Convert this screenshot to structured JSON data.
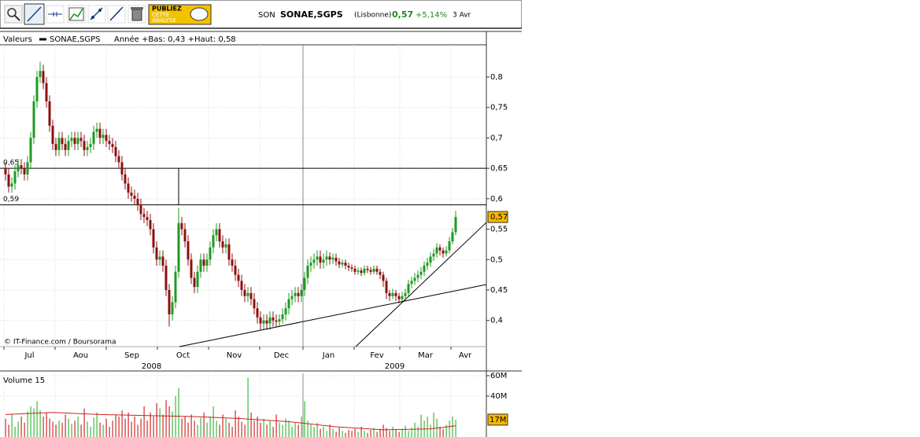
{
  "toolbar": {
    "ad": [
      "PUBLIEZ",
      "CETTE",
      "ANALYSE"
    ],
    "code": "SON",
    "name": "SONAE,SGPS",
    "market": "(Lisbonne)",
    "price": "0,57",
    "change": "+5,14%",
    "date": "3 Avr"
  },
  "legend": {
    "title": "Valeurs",
    "series": "SONAE,SGPS",
    "range": "Année +Bas: 0,43 +Haut: 0,58"
  },
  "chart_data": {
    "type": "candlestick",
    "watermark": "© IT-Finance.com / Boursorama",
    "grid": true,
    "colors": {
      "up": "#1f9a1f",
      "down": "#8b1010",
      "ma": "#cc2222"
    },
    "xlim": [
      -1.75,
      152.75
    ],
    "xticks": [
      {
        "value": -0.5,
        "label": "Jul"
      },
      {
        "value": 15.75,
        "label": "Aou"
      },
      {
        "value": 32,
        "label": "Sep"
      },
      {
        "value": 48.25,
        "label": "Oct"
      },
      {
        "value": 64.5,
        "label": "Nov"
      },
      {
        "value": 80.75,
        "label": "Dec"
      },
      {
        "value": 94.5,
        "label": "Jan"
      },
      {
        "value": 110.75,
        "label": "Fev"
      },
      {
        "value": 125.25,
        "label": "Mar"
      },
      {
        "value": 141.5,
        "label": "Avr"
      }
    ],
    "x_groups": [
      {
        "label": "2008",
        "range": [
          -1.75,
          94.5
        ]
      },
      {
        "label": "2009",
        "range": [
          94.5,
          152.75
        ]
      }
    ],
    "ylim": [
      0.357,
      0.853
    ],
    "yticks": [
      {
        "value": 0.4,
        "label": "0,4"
      },
      {
        "value": 0.45,
        "label": "0,45"
      },
      {
        "value": 0.5,
        "label": "0,5"
      },
      {
        "value": 0.55,
        "label": "0,55"
      },
      {
        "value": 0.6,
        "label": "0,6"
      },
      {
        "value": 0.65,
        "label": "0,65"
      },
      {
        "value": 0.7,
        "label": "0,7"
      },
      {
        "value": 0.75,
        "label": "0,75"
      },
      {
        "value": 0.8,
        "label": "0,8"
      }
    ],
    "hlines": [
      {
        "value": 0.65,
        "label": "0,65"
      },
      {
        "value": 0.59,
        "label": "0,59"
      }
    ],
    "vline": {
      "x": 55,
      "from": 0.59,
      "to": 0.65
    },
    "trendlines": [
      {
        "x": [
          55.25,
          152.75
        ],
        "y": [
          0.357,
          0.459
        ]
      },
      {
        "x": [
          111.25,
          152.75
        ],
        "y": [
          0.357,
          0.561
        ]
      }
    ],
    "last_value": {
      "value": 0.57,
      "label": "0,57"
    },
    "ohlc": [
      [
        0.65,
        0.66,
        0.63,
        0.64
      ],
      [
        0.64,
        0.65,
        0.61,
        0.62
      ],
      [
        0.62,
        0.635,
        0.61,
        0.625
      ],
      [
        0.625,
        0.655,
        0.615,
        0.645
      ],
      [
        0.645,
        0.665,
        0.635,
        0.655
      ],
      [
        0.655,
        0.665,
        0.64,
        0.65
      ],
      [
        0.65,
        0.66,
        0.63,
        0.64
      ],
      [
        0.64,
        0.67,
        0.63,
        0.66
      ],
      [
        0.66,
        0.71,
        0.65,
        0.7
      ],
      [
        0.7,
        0.77,
        0.69,
        0.76
      ],
      [
        0.76,
        0.81,
        0.75,
        0.8
      ],
      [
        0.8,
        0.825,
        0.79,
        0.81
      ],
      [
        0.81,
        0.82,
        0.78,
        0.79
      ],
      [
        0.79,
        0.8,
        0.75,
        0.76
      ],
      [
        0.76,
        0.77,
        0.71,
        0.72
      ],
      [
        0.72,
        0.73,
        0.68,
        0.69
      ],
      [
        0.69,
        0.7,
        0.67,
        0.68
      ],
      [
        0.68,
        0.71,
        0.67,
        0.7
      ],
      [
        0.7,
        0.71,
        0.68,
        0.69
      ],
      [
        0.69,
        0.7,
        0.67,
        0.68
      ],
      [
        0.68,
        0.705,
        0.67,
        0.695
      ],
      [
        0.695,
        0.71,
        0.685,
        0.7
      ],
      [
        0.7,
        0.71,
        0.68,
        0.69
      ],
      [
        0.69,
        0.71,
        0.68,
        0.7
      ],
      [
        0.7,
        0.71,
        0.685,
        0.695
      ],
      [
        0.695,
        0.705,
        0.67,
        0.68
      ],
      [
        0.68,
        0.695,
        0.67,
        0.685
      ],
      [
        0.685,
        0.7,
        0.675,
        0.69
      ],
      [
        0.69,
        0.72,
        0.68,
        0.71
      ],
      [
        0.71,
        0.725,
        0.7,
        0.715
      ],
      [
        0.715,
        0.725,
        0.69,
        0.7
      ],
      [
        0.7,
        0.715,
        0.69,
        0.705
      ],
      [
        0.705,
        0.715,
        0.685,
        0.695
      ],
      [
        0.695,
        0.705,
        0.68,
        0.69
      ],
      [
        0.69,
        0.7,
        0.675,
        0.685
      ],
      [
        0.685,
        0.695,
        0.66,
        0.67
      ],
      [
        0.67,
        0.68,
        0.65,
        0.66
      ],
      [
        0.66,
        0.67,
        0.63,
        0.64
      ],
      [
        0.64,
        0.65,
        0.615,
        0.625
      ],
      [
        0.625,
        0.635,
        0.6,
        0.61
      ],
      [
        0.61,
        0.62,
        0.595,
        0.605
      ],
      [
        0.605,
        0.615,
        0.59,
        0.6
      ],
      [
        0.6,
        0.61,
        0.58,
        0.59
      ],
      [
        0.59,
        0.6,
        0.565,
        0.575
      ],
      [
        0.575,
        0.585,
        0.56,
        0.57
      ],
      [
        0.57,
        0.58,
        0.555,
        0.565
      ],
      [
        0.565,
        0.575,
        0.54,
        0.55
      ],
      [
        0.55,
        0.56,
        0.51,
        0.52
      ],
      [
        0.52,
        0.53,
        0.49,
        0.5
      ],
      [
        0.5,
        0.515,
        0.49,
        0.505
      ],
      [
        0.505,
        0.515,
        0.48,
        0.49
      ],
      [
        0.49,
        0.5,
        0.44,
        0.45
      ],
      [
        0.45,
        0.46,
        0.39,
        0.41
      ],
      [
        0.41,
        0.44,
        0.4,
        0.43
      ],
      [
        0.43,
        0.49,
        0.42,
        0.48
      ],
      [
        0.48,
        0.585,
        0.47,
        0.56
      ],
      [
        0.56,
        0.57,
        0.54,
        0.55
      ],
      [
        0.55,
        0.56,
        0.52,
        0.53
      ],
      [
        0.53,
        0.54,
        0.49,
        0.5
      ],
      [
        0.5,
        0.51,
        0.46,
        0.47
      ],
      [
        0.47,
        0.48,
        0.445,
        0.455
      ],
      [
        0.455,
        0.49,
        0.445,
        0.48
      ],
      [
        0.48,
        0.51,
        0.47,
        0.5
      ],
      [
        0.5,
        0.51,
        0.48,
        0.49
      ],
      [
        0.49,
        0.51,
        0.48,
        0.5
      ],
      [
        0.5,
        0.53,
        0.49,
        0.52
      ],
      [
        0.52,
        0.55,
        0.51,
        0.54
      ],
      [
        0.54,
        0.56,
        0.53,
        0.55
      ],
      [
        0.55,
        0.56,
        0.52,
        0.53
      ],
      [
        0.53,
        0.54,
        0.51,
        0.52
      ],
      [
        0.52,
        0.535,
        0.51,
        0.525
      ],
      [
        0.525,
        0.535,
        0.49,
        0.5
      ],
      [
        0.5,
        0.51,
        0.48,
        0.49
      ],
      [
        0.49,
        0.5,
        0.465,
        0.475
      ],
      [
        0.475,
        0.485,
        0.455,
        0.465
      ],
      [
        0.465,
        0.475,
        0.44,
        0.45
      ],
      [
        0.45,
        0.46,
        0.43,
        0.44
      ],
      [
        0.44,
        0.455,
        0.43,
        0.445
      ],
      [
        0.445,
        0.455,
        0.425,
        0.435
      ],
      [
        0.435,
        0.445,
        0.41,
        0.42
      ],
      [
        0.42,
        0.43,
        0.395,
        0.405
      ],
      [
        0.405,
        0.415,
        0.385,
        0.395
      ],
      [
        0.395,
        0.41,
        0.385,
        0.4
      ],
      [
        0.4,
        0.41,
        0.385,
        0.395
      ],
      [
        0.395,
        0.415,
        0.385,
        0.405
      ],
      [
        0.405,
        0.415,
        0.39,
        0.4
      ],
      [
        0.4,
        0.41,
        0.39,
        0.398
      ],
      [
        0.398,
        0.41,
        0.39,
        0.402
      ],
      [
        0.402,
        0.42,
        0.395,
        0.41
      ],
      [
        0.41,
        0.43,
        0.4,
        0.42
      ],
      [
        0.42,
        0.445,
        0.41,
        0.435
      ],
      [
        0.435,
        0.45,
        0.425,
        0.44
      ],
      [
        0.44,
        0.455,
        0.43,
        0.445
      ],
      [
        0.445,
        0.455,
        0.43,
        0.44
      ],
      [
        0.44,
        0.46,
        0.43,
        0.45
      ],
      [
        0.45,
        0.48,
        0.44,
        0.47
      ],
      [
        0.47,
        0.5,
        0.46,
        0.49
      ],
      [
        0.49,
        0.505,
        0.48,
        0.495
      ],
      [
        0.495,
        0.51,
        0.485,
        0.5
      ],
      [
        0.5,
        0.515,
        0.49,
        0.505
      ],
      [
        0.505,
        0.515,
        0.485,
        0.495
      ],
      [
        0.495,
        0.51,
        0.485,
        0.5
      ],
      [
        0.5,
        0.515,
        0.49,
        0.505
      ],
      [
        0.505,
        0.512,
        0.492,
        0.5
      ],
      [
        0.5,
        0.51,
        0.493,
        0.503
      ],
      [
        0.503,
        0.51,
        0.49,
        0.497
      ],
      [
        0.497,
        0.503,
        0.486,
        0.492
      ],
      [
        0.492,
        0.5,
        0.487,
        0.495
      ],
      [
        0.495,
        0.5,
        0.484,
        0.49
      ],
      [
        0.49,
        0.495,
        0.481,
        0.487
      ],
      [
        0.487,
        0.492,
        0.48,
        0.485
      ],
      [
        0.485,
        0.49,
        0.475,
        0.48
      ],
      [
        0.48,
        0.487,
        0.475,
        0.482
      ],
      [
        0.482,
        0.487,
        0.473,
        0.478
      ],
      [
        0.478,
        0.49,
        0.474,
        0.485
      ],
      [
        0.485,
        0.49,
        0.478,
        0.483
      ],
      [
        0.483,
        0.488,
        0.475,
        0.48
      ],
      [
        0.48,
        0.49,
        0.476,
        0.485
      ],
      [
        0.485,
        0.49,
        0.475,
        0.48
      ],
      [
        0.48,
        0.485,
        0.468,
        0.475
      ],
      [
        0.475,
        0.48,
        0.455,
        0.465
      ],
      [
        0.465,
        0.47,
        0.435,
        0.445
      ],
      [
        0.445,
        0.45,
        0.432,
        0.44
      ],
      [
        0.44,
        0.452,
        0.435,
        0.445
      ],
      [
        0.445,
        0.45,
        0.432,
        0.44
      ],
      [
        0.44,
        0.445,
        0.428,
        0.435
      ],
      [
        0.435,
        0.447,
        0.43,
        0.44
      ],
      [
        0.44,
        0.452,
        0.435,
        0.445
      ],
      [
        0.445,
        0.467,
        0.44,
        0.46
      ],
      [
        0.46,
        0.472,
        0.453,
        0.465
      ],
      [
        0.465,
        0.478,
        0.458,
        0.47
      ],
      [
        0.47,
        0.482,
        0.463,
        0.475
      ],
      [
        0.475,
        0.488,
        0.468,
        0.48
      ],
      [
        0.48,
        0.497,
        0.473,
        0.49
      ],
      [
        0.49,
        0.503,
        0.483,
        0.495
      ],
      [
        0.495,
        0.512,
        0.488,
        0.505
      ],
      [
        0.505,
        0.518,
        0.498,
        0.51
      ],
      [
        0.51,
        0.527,
        0.503,
        0.52
      ],
      [
        0.52,
        0.525,
        0.507,
        0.515
      ],
      [
        0.515,
        0.52,
        0.503,
        0.51
      ],
      [
        0.51,
        0.522,
        0.505,
        0.515
      ],
      [
        0.515,
        0.537,
        0.51,
        0.53
      ],
      [
        0.53,
        0.552,
        0.525,
        0.545
      ],
      [
        0.545,
        0.58,
        0.54,
        0.57
      ]
    ],
    "volume": {
      "title": "Volume 15",
      "ylim": [
        0,
        62.3
      ],
      "yticks": [
        {
          "value": 60,
          "label": "60M"
        },
        {
          "value": 40,
          "label": "40M"
        }
      ],
      "last_value": {
        "value": 17,
        "label": "17M"
      },
      "values": [
        18,
        12,
        22,
        10,
        15,
        20,
        14,
        25,
        30,
        28,
        35,
        26,
        20,
        24,
        18,
        15,
        12,
        16,
        14,
        22,
        18,
        13,
        16,
        20,
        12,
        28,
        15,
        10,
        19,
        24,
        14,
        12,
        18,
        10,
        16,
        22,
        20,
        26,
        18,
        24,
        15,
        20,
        12,
        18,
        30,
        16,
        24,
        20,
        33,
        28,
        22,
        36,
        30,
        25,
        40,
        48,
        18,
        20,
        14,
        22,
        16,
        12,
        19,
        24,
        14,
        20,
        30,
        16,
        12,
        22,
        18,
        14,
        10,
        26,
        20,
        15,
        12,
        58,
        24,
        16,
        20,
        14,
        18,
        12,
        16,
        10,
        22,
        14,
        12,
        18,
        16,
        10,
        14,
        12,
        20,
        35,
        16,
        12,
        10,
        14,
        8,
        10,
        6,
        12,
        8,
        5,
        9,
        6,
        4,
        7,
        6,
        8,
        5,
        10,
        6,
        4,
        7,
        9,
        5,
        8,
        12,
        9,
        6,
        10,
        7,
        5,
        8,
        11,
        6,
        9,
        14,
        10,
        22,
        16,
        20,
        12,
        24,
        18,
        10,
        8,
        12,
        16,
        20,
        17
      ],
      "ma": {
        "x": [
          0,
          15,
          30,
          45,
          60,
          75,
          90,
          105,
          120,
          135,
          143
        ],
        "values": [
          22,
          24,
          22,
          21,
          20,
          18,
          15,
          10,
          7,
          8,
          11
        ]
      }
    }
  }
}
